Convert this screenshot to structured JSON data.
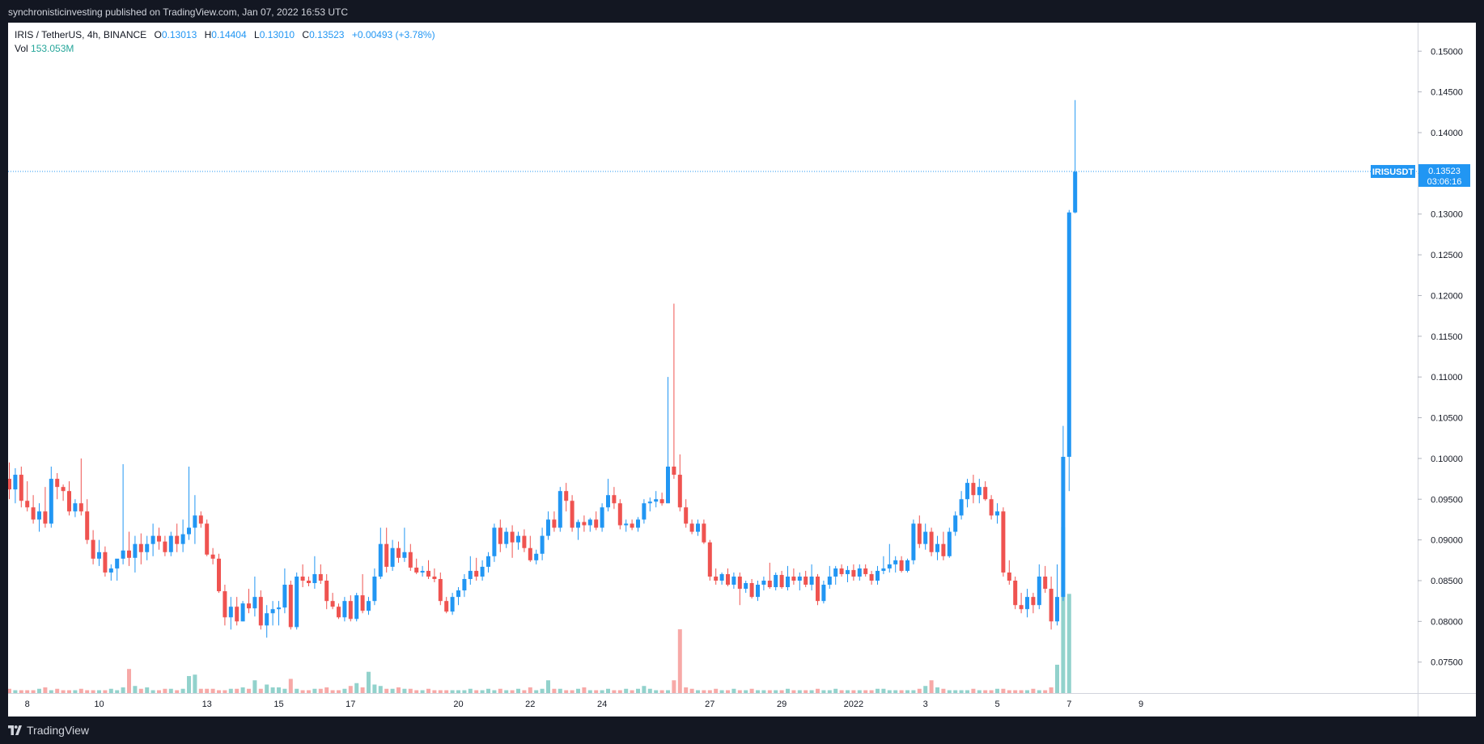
{
  "header": {
    "publisher_line": "synchronisticinvesting published on TradingView.com, Jan 07, 2022 16:53 UTC"
  },
  "legend": {
    "symbol": "IRIS / TetherUS, 4h, BINANCE",
    "open_label": "O",
    "open": "0.13013",
    "high_label": "H",
    "high": "0.14404",
    "low_label": "L",
    "low": "0.13010",
    "close_label": "C",
    "close": "0.13523",
    "change": "+0.00493 (+3.78%)",
    "vol_label": "Vol",
    "vol_value": "153.053M"
  },
  "price_tag": {
    "ticker": "IRISUSDT",
    "price": "0.13523",
    "countdown": "03:06:16"
  },
  "footer": {
    "brand": "TradingView"
  },
  "colors": {
    "up": "#2196f3",
    "down": "#ef5350",
    "vol_up": "#26a69a",
    "vol_down": "#ef5350",
    "background": "#ffffff",
    "frame": "#131722"
  },
  "chart_data": {
    "type": "candlestick",
    "symbol": "IRIS / TetherUS",
    "interval": "4h",
    "exchange": "BINANCE",
    "ylim": [
      0.0712,
      0.1535
    ],
    "y_ticks": [
      "0.15000",
      "0.14500",
      "0.14000",
      "0.13500",
      "0.13000",
      "0.12500",
      "0.12000",
      "0.11500",
      "0.11000",
      "0.10500",
      "0.10000",
      "0.09500",
      "0.09000",
      "0.08500",
      "0.08000",
      "0.07500"
    ],
    "x_ticks": [
      {
        "label": "8",
        "bar": 3
      },
      {
        "label": "10",
        "bar": 15
      },
      {
        "label": "13",
        "bar": 33
      },
      {
        "label": "15",
        "bar": 45
      },
      {
        "label": "17",
        "bar": 57
      },
      {
        "label": "20",
        "bar": 75
      },
      {
        "label": "22",
        "bar": 87
      },
      {
        "label": "24",
        "bar": 99
      },
      {
        "label": "27",
        "bar": 117
      },
      {
        "label": "29",
        "bar": 129
      },
      {
        "label": "2022",
        "bar": 141
      },
      {
        "label": "3",
        "bar": 153
      },
      {
        "label": "5",
        "bar": 165
      },
      {
        "label": "7",
        "bar": 177
      },
      {
        "label": "9",
        "bar": 189
      }
    ],
    "last_price": 0.13523,
    "candles": [
      [
        0.0975,
        0.0995,
        0.095,
        0.0962
      ],
      [
        0.0962,
        0.0988,
        0.0945,
        0.098
      ],
      [
        0.098,
        0.099,
        0.094,
        0.0948
      ],
      [
        0.0948,
        0.0972,
        0.0935,
        0.094
      ],
      [
        0.094,
        0.0955,
        0.092,
        0.0925
      ],
      [
        0.0925,
        0.0945,
        0.091,
        0.0935
      ],
      [
        0.0935,
        0.0965,
        0.0915,
        0.092
      ],
      [
        0.092,
        0.099,
        0.0915,
        0.0975
      ],
      [
        0.0975,
        0.0982,
        0.095,
        0.0965
      ],
      [
        0.0965,
        0.0968,
        0.0948,
        0.096
      ],
      [
        0.096,
        0.0972,
        0.093,
        0.0935
      ],
      [
        0.0935,
        0.095,
        0.0928,
        0.0945
      ],
      [
        0.0945,
        0.1,
        0.093,
        0.0935
      ],
      [
        0.0935,
        0.095,
        0.0895,
        0.09
      ],
      [
        0.09,
        0.0912,
        0.087,
        0.0877
      ],
      [
        0.0877,
        0.09,
        0.0868,
        0.0885
      ],
      [
        0.0885,
        0.0892,
        0.0855,
        0.086
      ],
      [
        0.086,
        0.087,
        0.085,
        0.0865
      ],
      [
        0.0865,
        0.0875,
        0.085,
        0.0877
      ],
      [
        0.0877,
        0.0993,
        0.087,
        0.0887
      ],
      [
        0.0887,
        0.091,
        0.0868,
        0.0878
      ],
      [
        0.0878,
        0.0905,
        0.086,
        0.0895
      ],
      [
        0.0895,
        0.0908,
        0.087,
        0.0885
      ],
      [
        0.0885,
        0.0905,
        0.0875,
        0.0895
      ],
      [
        0.0895,
        0.092,
        0.088,
        0.0905
      ],
      [
        0.0905,
        0.0915,
        0.0888,
        0.0898
      ],
      [
        0.0898,
        0.0905,
        0.088,
        0.0885
      ],
      [
        0.0885,
        0.091,
        0.088,
        0.0905
      ],
      [
        0.0905,
        0.092,
        0.0885,
        0.0895
      ],
      [
        0.0895,
        0.0925,
        0.0885,
        0.0907
      ],
      [
        0.0907,
        0.099,
        0.09,
        0.0915
      ],
      [
        0.0915,
        0.0955,
        0.0895,
        0.093
      ],
      [
        0.093,
        0.0935,
        0.0915,
        0.092
      ],
      [
        0.092,
        0.0925,
        0.088,
        0.0882
      ],
      [
        0.0882,
        0.089,
        0.087,
        0.0877
      ],
      [
        0.0877,
        0.0883,
        0.0835,
        0.0837
      ],
      [
        0.0837,
        0.0845,
        0.0795,
        0.0805
      ],
      [
        0.0805,
        0.083,
        0.079,
        0.0818
      ],
      [
        0.0818,
        0.083,
        0.0795,
        0.08
      ],
      [
        0.08,
        0.0825,
        0.08,
        0.0822
      ],
      [
        0.0822,
        0.084,
        0.081,
        0.0816
      ],
      [
        0.0816,
        0.0855,
        0.0806,
        0.083
      ],
      [
        0.083,
        0.0838,
        0.079,
        0.0795
      ],
      [
        0.0795,
        0.082,
        0.078,
        0.081
      ],
      [
        0.081,
        0.0825,
        0.0795,
        0.0815
      ],
      [
        0.0815,
        0.0825,
        0.0795,
        0.0817
      ],
      [
        0.0817,
        0.0865,
        0.081,
        0.0845
      ],
      [
        0.0845,
        0.085,
        0.079,
        0.0793
      ],
      [
        0.0793,
        0.086,
        0.079,
        0.0855
      ],
      [
        0.0855,
        0.087,
        0.0842,
        0.085
      ],
      [
        0.085,
        0.0855,
        0.0843,
        0.0847
      ],
      [
        0.0847,
        0.088,
        0.084,
        0.0858
      ],
      [
        0.0858,
        0.087,
        0.0846,
        0.085
      ],
      [
        0.085,
        0.0858,
        0.0815,
        0.0825
      ],
      [
        0.0825,
        0.0835,
        0.0815,
        0.0818
      ],
      [
        0.0818,
        0.0822,
        0.0803,
        0.0805
      ],
      [
        0.0805,
        0.083,
        0.08,
        0.0825
      ],
      [
        0.0825,
        0.0832,
        0.08,
        0.0803
      ],
      [
        0.0803,
        0.0835,
        0.08,
        0.0832
      ],
      [
        0.0832,
        0.0858,
        0.081,
        0.0813
      ],
      [
        0.0813,
        0.083,
        0.0808,
        0.0825
      ],
      [
        0.0825,
        0.0865,
        0.082,
        0.0855
      ],
      [
        0.0855,
        0.0915,
        0.0852,
        0.0895
      ],
      [
        0.0895,
        0.0915,
        0.086,
        0.0867
      ],
      [
        0.0867,
        0.09,
        0.0862,
        0.089
      ],
      [
        0.089,
        0.0898,
        0.0872,
        0.0878
      ],
      [
        0.0878,
        0.0915,
        0.0873,
        0.0885
      ],
      [
        0.0885,
        0.0895,
        0.0862,
        0.0866
      ],
      [
        0.0866,
        0.0877,
        0.0858,
        0.086
      ],
      [
        0.086,
        0.0868,
        0.0855,
        0.0862
      ],
      [
        0.0862,
        0.0875,
        0.0852,
        0.0855
      ],
      [
        0.0855,
        0.0865,
        0.0848,
        0.0852
      ],
      [
        0.0852,
        0.086,
        0.082,
        0.0825
      ],
      [
        0.0825,
        0.083,
        0.081,
        0.0812
      ],
      [
        0.0812,
        0.0835,
        0.0808,
        0.083
      ],
      [
        0.083,
        0.0842,
        0.082,
        0.0838
      ],
      [
        0.0838,
        0.0858,
        0.083,
        0.0852
      ],
      [
        0.0852,
        0.088,
        0.0845,
        0.0862
      ],
      [
        0.0862,
        0.0878,
        0.085,
        0.0855
      ],
      [
        0.0855,
        0.0875,
        0.085,
        0.0867
      ],
      [
        0.0867,
        0.0885,
        0.086,
        0.088
      ],
      [
        0.088,
        0.092,
        0.0873,
        0.0915
      ],
      [
        0.0915,
        0.0925,
        0.0885,
        0.0895
      ],
      [
        0.0895,
        0.0915,
        0.089,
        0.091
      ],
      [
        0.091,
        0.0918,
        0.0878,
        0.0897
      ],
      [
        0.0897,
        0.091,
        0.0888,
        0.0905
      ],
      [
        0.0905,
        0.0913,
        0.0885,
        0.089
      ],
      [
        0.089,
        0.0905,
        0.0873,
        0.0875
      ],
      [
        0.0875,
        0.0888,
        0.087,
        0.0883
      ],
      [
        0.0883,
        0.0915,
        0.0875,
        0.0905
      ],
      [
        0.0905,
        0.0935,
        0.09,
        0.0925
      ],
      [
        0.0925,
        0.0935,
        0.091,
        0.0915
      ],
      [
        0.0915,
        0.0965,
        0.091,
        0.096
      ],
      [
        0.096,
        0.097,
        0.0935,
        0.0948
      ],
      [
        0.0948,
        0.0955,
        0.091,
        0.0915
      ],
      [
        0.0915,
        0.0925,
        0.09,
        0.0922
      ],
      [
        0.0922,
        0.093,
        0.091,
        0.0918
      ],
      [
        0.0918,
        0.0927,
        0.091,
        0.0925
      ],
      [
        0.0925,
        0.0935,
        0.0912,
        0.0915
      ],
      [
        0.0915,
        0.0945,
        0.091,
        0.094
      ],
      [
        0.094,
        0.0975,
        0.0935,
        0.0955
      ],
      [
        0.0955,
        0.0965,
        0.0938,
        0.0945
      ],
      [
        0.0945,
        0.095,
        0.0913,
        0.0918
      ],
      [
        0.0918,
        0.0925,
        0.091,
        0.092
      ],
      [
        0.092,
        0.0925,
        0.0912,
        0.0915
      ],
      [
        0.0915,
        0.0928,
        0.091,
        0.0925
      ],
      [
        0.0925,
        0.095,
        0.092,
        0.0945
      ],
      [
        0.0945,
        0.0952,
        0.0935,
        0.0947
      ],
      [
        0.0947,
        0.096,
        0.094,
        0.095
      ],
      [
        0.095,
        0.0958,
        0.0942,
        0.0945
      ],
      [
        0.0945,
        0.11,
        0.0945,
        0.099
      ],
      [
        0.099,
        0.119,
        0.0975,
        0.098
      ],
      [
        0.098,
        0.1005,
        0.0935,
        0.094
      ],
      [
        0.094,
        0.095,
        0.0915,
        0.092
      ],
      [
        0.092,
        0.0925,
        0.0907,
        0.091
      ],
      [
        0.091,
        0.0925,
        0.0905,
        0.092
      ],
      [
        0.092,
        0.0925,
        0.0895,
        0.0897
      ],
      [
        0.0897,
        0.09,
        0.085,
        0.0855
      ],
      [
        0.0855,
        0.0865,
        0.0845,
        0.085
      ],
      [
        0.085,
        0.086,
        0.0845,
        0.0858
      ],
      [
        0.0858,
        0.0865,
        0.0843,
        0.0845
      ],
      [
        0.0845,
        0.086,
        0.084,
        0.0855
      ],
      [
        0.0855,
        0.086,
        0.082,
        0.084
      ],
      [
        0.084,
        0.085,
        0.0835,
        0.0847
      ],
      [
        0.0847,
        0.0852,
        0.0828,
        0.083
      ],
      [
        0.083,
        0.085,
        0.0825,
        0.0845
      ],
      [
        0.0845,
        0.0855,
        0.0838,
        0.085
      ],
      [
        0.085,
        0.0872,
        0.084,
        0.0842
      ],
      [
        0.0842,
        0.086,
        0.0838,
        0.0857
      ],
      [
        0.0857,
        0.0862,
        0.084,
        0.0842
      ],
      [
        0.0842,
        0.0868,
        0.0838,
        0.0855
      ],
      [
        0.0855,
        0.0865,
        0.0845,
        0.085
      ],
      [
        0.085,
        0.086,
        0.0838,
        0.0855
      ],
      [
        0.0855,
        0.0862,
        0.0842,
        0.0845
      ],
      [
        0.0845,
        0.087,
        0.0838,
        0.0855
      ],
      [
        0.0855,
        0.0858,
        0.082,
        0.0825
      ],
      [
        0.0825,
        0.085,
        0.0822,
        0.0845
      ],
      [
        0.0845,
        0.0868,
        0.084,
        0.0855
      ],
      [
        0.0855,
        0.0868,
        0.0845,
        0.0865
      ],
      [
        0.0865,
        0.087,
        0.0855,
        0.0858
      ],
      [
        0.0858,
        0.0868,
        0.0848,
        0.0863
      ],
      [
        0.0863,
        0.087,
        0.085,
        0.0855
      ],
      [
        0.0855,
        0.087,
        0.085,
        0.0865
      ],
      [
        0.0865,
        0.087,
        0.0855,
        0.0858
      ],
      [
        0.0858,
        0.0862,
        0.0845,
        0.085
      ],
      [
        0.085,
        0.0868,
        0.0845,
        0.0862
      ],
      [
        0.0862,
        0.088,
        0.0858,
        0.0865
      ],
      [
        0.0865,
        0.0895,
        0.086,
        0.087
      ],
      [
        0.087,
        0.088,
        0.086,
        0.0875
      ],
      [
        0.0875,
        0.088,
        0.086,
        0.0862
      ],
      [
        0.0862,
        0.0877,
        0.086,
        0.0875
      ],
      [
        0.0875,
        0.0925,
        0.087,
        0.092
      ],
      [
        0.092,
        0.093,
        0.089,
        0.0895
      ],
      [
        0.0895,
        0.092,
        0.0888,
        0.091
      ],
      [
        0.091,
        0.0915,
        0.088,
        0.0885
      ],
      [
        0.0885,
        0.0905,
        0.0875,
        0.0895
      ],
      [
        0.0895,
        0.091,
        0.0875,
        0.088
      ],
      [
        0.088,
        0.0915,
        0.0878,
        0.091
      ],
      [
        0.091,
        0.0935,
        0.0905,
        0.093
      ],
      [
        0.093,
        0.096,
        0.0925,
        0.095
      ],
      [
        0.095,
        0.0975,
        0.094,
        0.097
      ],
      [
        0.097,
        0.098,
        0.0945,
        0.0955
      ],
      [
        0.0955,
        0.0975,
        0.0945,
        0.0965
      ],
      [
        0.0965,
        0.0972,
        0.0948,
        0.095
      ],
      [
        0.095,
        0.0955,
        0.0925,
        0.093
      ],
      [
        0.093,
        0.0945,
        0.092,
        0.0935
      ],
      [
        0.0935,
        0.094,
        0.0855,
        0.086
      ],
      [
        0.086,
        0.0875,
        0.0845,
        0.085
      ],
      [
        0.085,
        0.0855,
        0.0815,
        0.082
      ],
      [
        0.082,
        0.0835,
        0.081,
        0.0815
      ],
      [
        0.0815,
        0.084,
        0.0805,
        0.083
      ],
      [
        0.083,
        0.0835,
        0.081,
        0.082
      ],
      [
        0.082,
        0.087,
        0.0815,
        0.0855
      ],
      [
        0.0855,
        0.0868,
        0.0835,
        0.084
      ],
      [
        0.084,
        0.0855,
        0.079,
        0.08
      ],
      [
        0.08,
        0.087,
        0.0795,
        0.083
      ],
      [
        0.083,
        0.104,
        0.0825,
        0.1002
      ],
      [
        0.1002,
        0.1305,
        0.096,
        0.1302
      ],
      [
        0.1302,
        0.144,
        0.1301,
        0.1352
      ]
    ],
    "volume": [
      3,
      2,
      2,
      2,
      2,
      3,
      4,
      2,
      3,
      2,
      2,
      2,
      3,
      2,
      2,
      2,
      2,
      3,
      2,
      4,
      17,
      5,
      3,
      4,
      2,
      2,
      3,
      3,
      2,
      3,
      12,
      13,
      3,
      3,
      3,
      2,
      2,
      3,
      3,
      4,
      3,
      9,
      3,
      6,
      4,
      4,
      3,
      10,
      3,
      2,
      2,
      3,
      3,
      4,
      2,
      2,
      3,
      5,
      7,
      4,
      15,
      6,
      5,
      3,
      3,
      4,
      3,
      3,
      2,
      2,
      3,
      2,
      2,
      2,
      2,
      2,
      2,
      3,
      2,
      2,
      3,
      2,
      3,
      2,
      2,
      3,
      2,
      4,
      2,
      3,
      9,
      3,
      3,
      2,
      2,
      3,
      4,
      2,
      2,
      2,
      3,
      2,
      2,
      3,
      2,
      3,
      5,
      3,
      2,
      2,
      2,
      9,
      45,
      4,
      3,
      2,
      2,
      2,
      3,
      2,
      2,
      3,
      2,
      2,
      3,
      2,
      2,
      2,
      2,
      2,
      3,
      2,
      2,
      2,
      2,
      3,
      2,
      2,
      3,
      2,
      2,
      2,
      2,
      2,
      2,
      3,
      3,
      2,
      2,
      2,
      2,
      2,
      3,
      5,
      9,
      4,
      3,
      2,
      2,
      2,
      2,
      3,
      2,
      2,
      2,
      3,
      3,
      2,
      2,
      2,
      2,
      3,
      2,
      2,
      4,
      20,
      117,
      70
    ]
  }
}
